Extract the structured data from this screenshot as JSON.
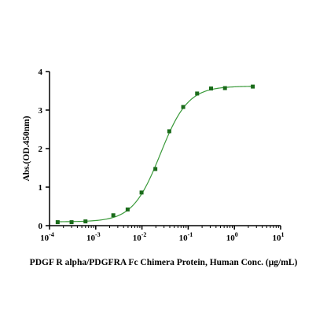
{
  "chart_data": {
    "type": "scatter",
    "title": "",
    "xlabel": "PDGF R alpha/PDGFRA Fc Chimera Protein, Human Conc. (μg/mL)",
    "ylabel": "Abs.(OD.450nm)",
    "x_scale": "log",
    "xlim": [
      0.0001,
      10
    ],
    "ylim": [
      0,
      4
    ],
    "x_ticks": [
      {
        "base": "10",
        "exp": "-4",
        "value": 0.0001
      },
      {
        "base": "10",
        "exp": "-3",
        "value": 0.001
      },
      {
        "base": "10",
        "exp": "-2",
        "value": 0.01
      },
      {
        "base": "10",
        "exp": "-1",
        "value": 0.1
      },
      {
        "base": "10",
        "exp": "0",
        "value": 1
      },
      {
        "base": "10",
        "exp": "1",
        "value": 10
      }
    ],
    "y_ticks": [
      "0",
      "1",
      "2",
      "3",
      "4"
    ],
    "grid": false,
    "legend": "none",
    "marker_color": "#1a6b1a",
    "curve_color": "#3a9a3a",
    "curve_fit": {
      "bottom": 0.1,
      "top": 3.62,
      "ec50": 0.025,
      "hill": 1.45
    },
    "series": [
      {
        "x": [
          0.00015,
          0.0003,
          0.0006,
          0.0024,
          0.0049,
          0.0098,
          0.0195,
          0.039,
          0.078,
          0.156,
          0.3125,
          0.625,
          2.5
        ],
        "y": [
          0.09,
          0.09,
          0.11,
          0.27,
          0.42,
          0.86,
          1.47,
          2.45,
          3.08,
          3.43,
          3.56,
          3.57,
          3.61
        ]
      }
    ]
  }
}
